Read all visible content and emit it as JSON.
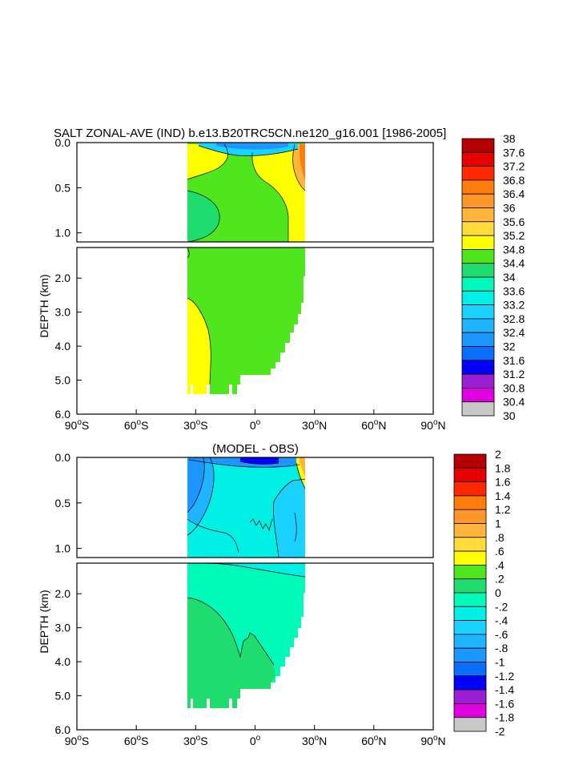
{
  "colors": {
    "salt_scale": [
      "#6e6e6e",
      "#c8c8c8",
      "#e000e0",
      "#9a1ed2",
      "#0000ff",
      "#0a6eff",
      "#1e96ff",
      "#1eb4ff",
      "#19d2ff",
      "#00f0e6",
      "#00fab9",
      "#1edc6e",
      "#50e61e",
      "#ffff00",
      "#ffdc3c",
      "#ffb43c",
      "#ff9628",
      "#ff7d0a",
      "#ff2800",
      "#e60000",
      "#b40000"
    ],
    "diff_scale": [
      "#6e6e6e",
      "#c8c8c8",
      "#e000e0",
      "#9a1ed2",
      "#0000ff",
      "#0a6eff",
      "#1e96ff",
      "#1eb4ff",
      "#19d2ff",
      "#00f0e6",
      "#00fab9",
      "#1edc6e",
      "#50e61e",
      "#ffff00",
      "#ffdc3c",
      "#ffb43c",
      "#ff9628",
      "#ff7d0a",
      "#ff2800",
      "#e60000",
      "#b40000"
    ]
  },
  "chart_data": [
    {
      "type": "heatmap",
      "title": "SALT ZONAL-AVE (IND) b.e13.B20TRC5CN.ne120_g16.001 [1986-2005]",
      "ylabel": "DEPTH (km)",
      "xticks": [
        "90°S",
        "60°S",
        "30°S",
        "0°",
        "30°N",
        "60°N",
        "90°N"
      ],
      "x_values": [
        -90,
        -60,
        -30,
        0,
        30,
        60,
        90
      ],
      "yticks_upper": [
        "0.0",
        "0.5",
        "1.0"
      ],
      "yticks_lower": [
        "2.0",
        "3.0",
        "4.0",
        "5.0",
        "6.0"
      ],
      "xlim": [
        -90,
        90
      ],
      "ylim_km": [
        0,
        6
      ],
      "data_extent_lat": [
        -34,
        25
      ],
      "colorbar_levels": [
        "38",
        "37.6",
        "37.2",
        "36.8",
        "36.4",
        "36",
        "35.6",
        "35.2",
        "34.8",
        "34.4",
        "34",
        "33.6",
        "33.2",
        "32.8",
        "32.4",
        "32",
        "31.6",
        "31.2",
        "30.8",
        "30.4",
        "30"
      ]
    },
    {
      "type": "heatmap",
      "title": "(MODEL - OBS)",
      "ylabel": "DEPTH (km)",
      "xticks": [
        "90°S",
        "60°S",
        "30°S",
        "0°",
        "30°N",
        "60°N",
        "90°N"
      ],
      "x_values": [
        -90,
        -60,
        -30,
        0,
        30,
        60,
        90
      ],
      "yticks_upper": [
        "0.0",
        "0.5",
        "1.0"
      ],
      "yticks_lower": [
        "2.0",
        "3.0",
        "4.0",
        "5.0",
        "6.0"
      ],
      "xlim": [
        -90,
        90
      ],
      "ylim_km": [
        0,
        6
      ],
      "data_extent_lat": [
        -34,
        25
      ],
      "colorbar_levels": [
        "2",
        "1.8",
        "1.6",
        "1.4",
        "1.2",
        "1",
        ".8",
        ".6",
        ".4",
        ".2",
        "0",
        "-.2",
        "-.4",
        "-.6",
        "-.8",
        "-1",
        "-1.2",
        "-1.4",
        "-1.6",
        "-1.8",
        "-2"
      ]
    }
  ]
}
